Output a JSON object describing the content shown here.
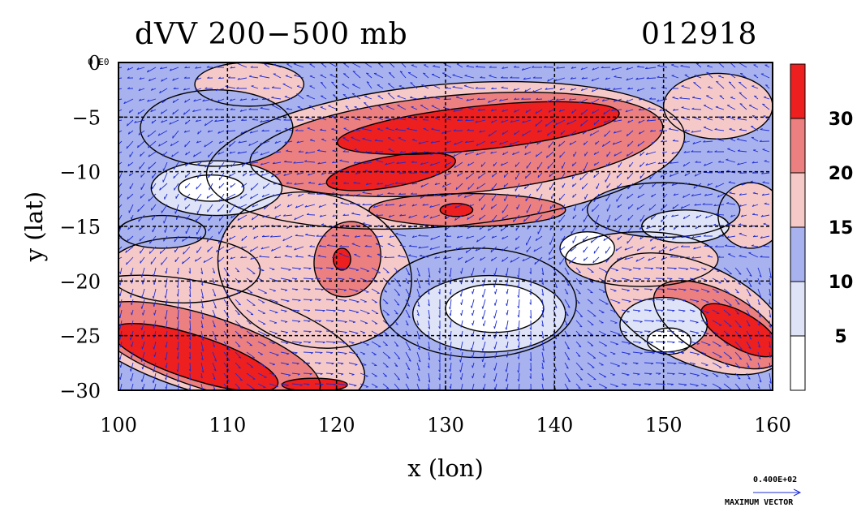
{
  "header": {
    "title": "dVV 200−500 mb",
    "date_code": "012918"
  },
  "corner_label": "0 E0",
  "max_vector": {
    "value_label": "0.400E+02",
    "label": "MAXIMUM VECTOR"
  },
  "colors": {
    "c_0_5": "#ffffff",
    "c_5_10": "#dfe3f7",
    "c_10_15": "#a8b2ee",
    "c_15_20": "#f6c9c9",
    "c_20_30": "#ec8080",
    "c_30_plus": "#ee1f1f",
    "vectors": "#1c2cd6"
  },
  "chart_data": {
    "type": "heatmap",
    "title": "dVV 200−500 mb",
    "subtitle": "012918",
    "xlabel": "x (lon)",
    "ylabel": "y (lat)",
    "xlim": [
      100,
      160
    ],
    "ylim": [
      -30,
      0
    ],
    "x_ticks": [
      100,
      110,
      120,
      130,
      140,
      150,
      160
    ],
    "y_ticks": [
      0,
      -5,
      -10,
      -15,
      -20,
      -25,
      -30
    ],
    "grid": true,
    "colorbar": {
      "levels": [
        0,
        5,
        10,
        15,
        20,
        30
      ],
      "tick_labels": [
        "5",
        "10",
        "15",
        "20",
        "30"
      ]
    },
    "regions": [
      {
        "level": 30,
        "lon": 133,
        "lat": -6,
        "rlon": 13,
        "rlat": 2.0,
        "rot": -6
      },
      {
        "level": 30,
        "lon": 125,
        "lat": -10,
        "rlon": 6,
        "rlat": 1.4,
        "rot": -10
      },
      {
        "level": 30,
        "lon": 107,
        "lat": -27,
        "rlon": 8,
        "rlat": 2.0,
        "rot": 18
      },
      {
        "level": 30,
        "lon": 157,
        "lat": -24.5,
        "rlon": 4,
        "rlat": 1.6,
        "rot": 30
      },
      {
        "level": 30,
        "lon": 131,
        "lat": -13.5,
        "rlon": 1.5,
        "rlat": 0.6,
        "rot": 0
      },
      {
        "level": 30,
        "lon": 120.5,
        "lat": -18,
        "rlon": 0.8,
        "rlat": 1.0,
        "rot": 0
      },
      {
        "level": 30,
        "lon": 118,
        "lat": -29.5,
        "rlon": 3,
        "rlat": 0.6,
        "rot": 0
      },
      {
        "level": 20,
        "lon": 131,
        "lat": -7.5,
        "rlon": 19,
        "rlat": 4.5,
        "rot": -5
      },
      {
        "level": 20,
        "lon": 108,
        "lat": -26.5,
        "rlon": 11,
        "rlat": 3.3,
        "rot": 18
      },
      {
        "level": 20,
        "lon": 155,
        "lat": -24,
        "rlon": 6.5,
        "rlat": 3.0,
        "rot": 28
      },
      {
        "level": 20,
        "lon": 121,
        "lat": -18,
        "rlon": 3,
        "rlat": 3.5,
        "rot": 20
      },
      {
        "level": 20,
        "lon": 132,
        "lat": -13.5,
        "rlon": 9,
        "rlat": 1.5,
        "rot": 0
      },
      {
        "level": 15,
        "lon": 130,
        "lat": -8.5,
        "rlon": 22,
        "rlat": 6.5,
        "rot": -5
      },
      {
        "level": 15,
        "lon": 109,
        "lat": -25.5,
        "rlon": 14,
        "rlat": 5.0,
        "rot": 15
      },
      {
        "level": 15,
        "lon": 153,
        "lat": -23,
        "rlon": 9,
        "rlat": 4.5,
        "rot": 25
      },
      {
        "level": 15,
        "lon": 118,
        "lat": -19,
        "rlon": 9,
        "rlat": 7.0,
        "rot": 15
      },
      {
        "level": 15,
        "lon": 106,
        "lat": -19,
        "rlon": 7,
        "rlat": 3.0,
        "rot": 0
      },
      {
        "level": 15,
        "lon": 148,
        "lat": -18,
        "rlon": 7,
        "rlat": 2.5,
        "rot": 0
      },
      {
        "level": 15,
        "lon": 158,
        "lat": -14,
        "rlon": 3,
        "rlat": 3.0,
        "rot": 0
      },
      {
        "level": 15,
        "lon": 112,
        "lat": -2,
        "rlon": 5,
        "rlat": 2.0,
        "rot": 0
      },
      {
        "level": 15,
        "lon": 155,
        "lat": -4,
        "rlon": 5,
        "rlat": 3.0,
        "rot": 0
      },
      {
        "level": 10,
        "lon": 109,
        "lat": -6,
        "rlon": 7,
        "rlat": 3.5,
        "rot": 0
      },
      {
        "level": 10,
        "lon": 133,
        "lat": -22,
        "rlon": 9,
        "rlat": 5.0,
        "rot": 0
      },
      {
        "level": 10,
        "lon": 150,
        "lat": -13.5,
        "rlon": 7,
        "rlat": 2.5,
        "rot": 0
      },
      {
        "level": 10,
        "lon": 104,
        "lat": -15.5,
        "rlon": 4,
        "rlat": 1.5,
        "rot": 0
      },
      {
        "level": 5,
        "lon": 134,
        "lat": -23,
        "rlon": 7,
        "rlat": 3.5,
        "rot": 0
      },
      {
        "level": 5,
        "lon": 109,
        "lat": -11.5,
        "rlon": 6,
        "rlat": 2.5,
        "rot": 0
      },
      {
        "level": 5,
        "lon": 150,
        "lat": -24,
        "rlon": 4,
        "rlat": 2.5,
        "rot": 0
      },
      {
        "level": 5,
        "lon": 152,
        "lat": -15,
        "rlon": 4,
        "rlat": 1.5,
        "rot": 0
      },
      {
        "level": 0,
        "lon": 134.5,
        "lat": -22.5,
        "rlon": 4.5,
        "rlat": 2.2,
        "rot": 0
      },
      {
        "level": 0,
        "lon": 108.5,
        "lat": -11.5,
        "rlon": 3,
        "rlat": 1.2,
        "rot": 0
      },
      {
        "level": 0,
        "lon": 143,
        "lat": -17,
        "rlon": 2.5,
        "rlat": 1.5,
        "rot": 0
      },
      {
        "level": 0,
        "lon": 150.5,
        "lat": -25.5,
        "rlon": 2,
        "rlat": 1.2,
        "rot": 0
      }
    ]
  }
}
